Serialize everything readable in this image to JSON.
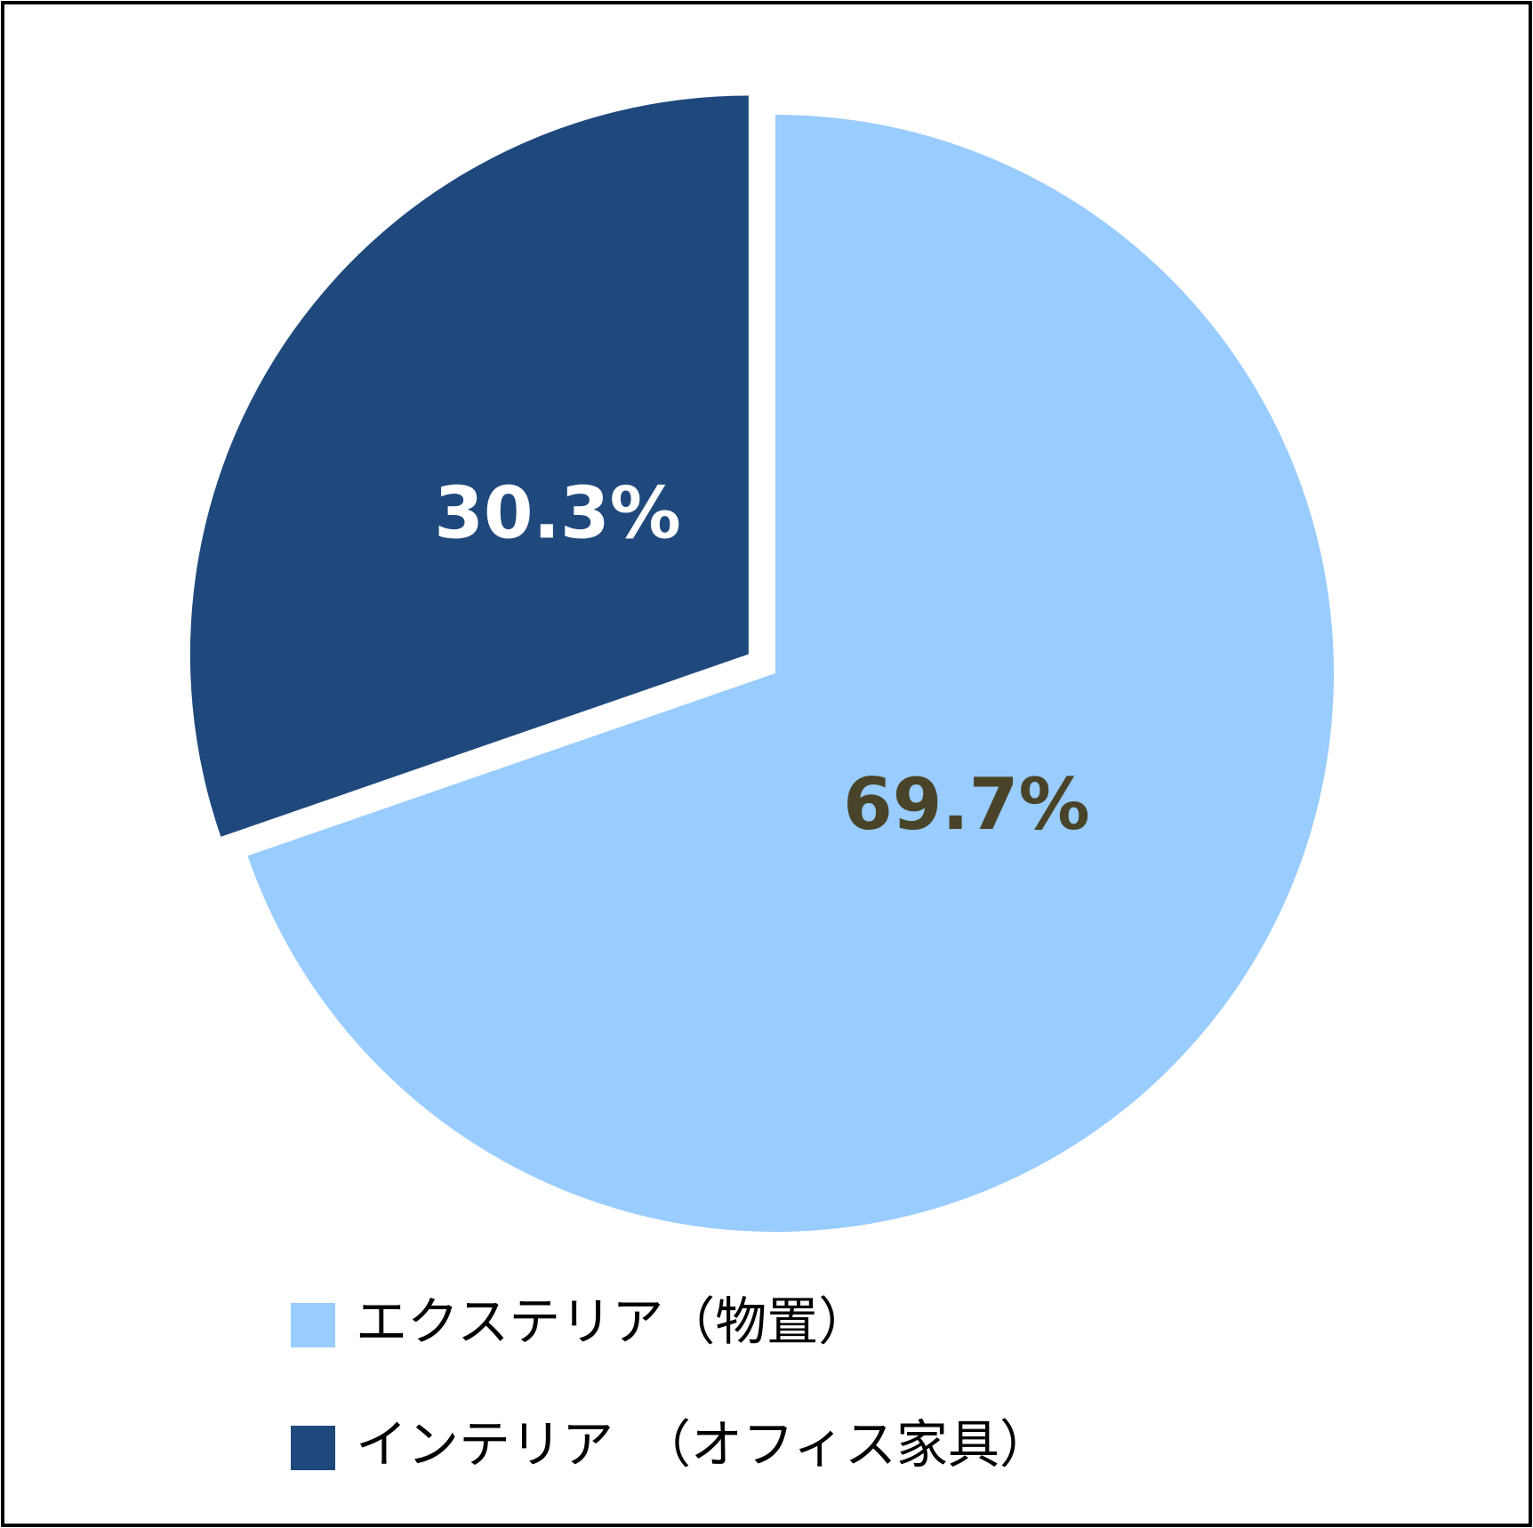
{
  "chart_data": {
    "type": "pie",
    "categories": [
      "エクステリア（物置）",
      "インテリア　（オフィス家具）"
    ],
    "values": [
      69.7,
      30.3
    ],
    "value_labels": [
      "69.7%",
      "30.3%"
    ],
    "colors": [
      "#99ccff",
      "#1f497d"
    ],
    "label_colors": [
      "#494429",
      "#ffffff"
    ],
    "legend": "bottom"
  }
}
